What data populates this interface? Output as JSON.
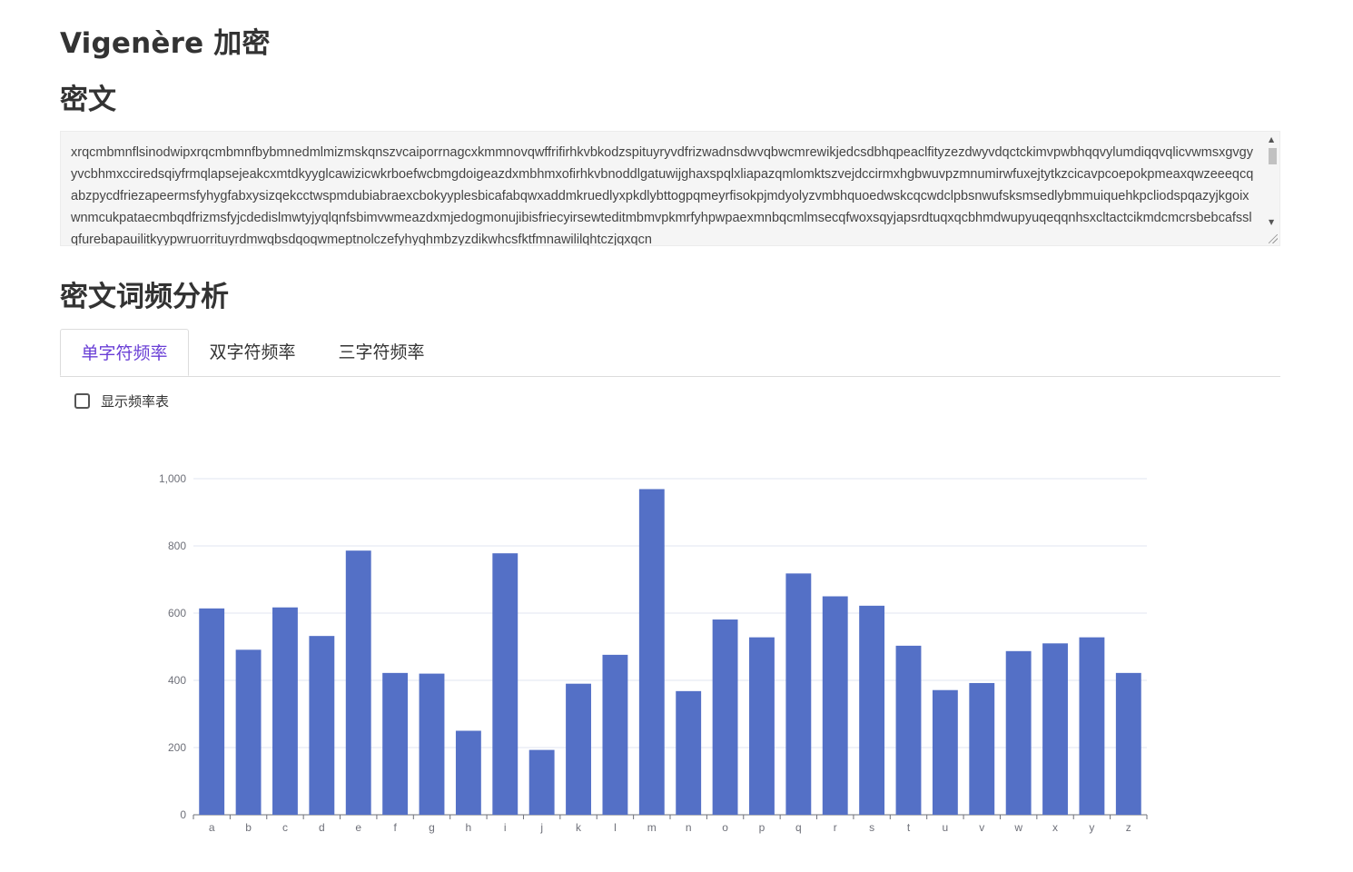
{
  "page": {
    "title": "Vigenère 加密",
    "ciphertext_heading": "密文",
    "analysis_heading": "密文词频分析"
  },
  "ciphertext": {
    "value": "xrqcmbmnflsinodwipxrqcmbmnfbybmnedmlmizmskqnszvcaiporrnagcxkmmnovqwffrifirhkvbkodzspituyryvdfrizwadnsdwvqbwcmrewikjedcsdbhqpeaclfityzezdwyvdqctckimvpwbhqqvylumdiqqvqlicvwmsxgvgyyvcbhmxcciredsqiyfrmqlapsejeakcxmtdkyyglcawizicwkrboefwcbmgdoigeazdxmbhmxofirhkvbnoddlgatuwijghaxspqlxliapazqmlomktszvejdccirmxhgbwuvpzmnumirwfuxejtytkzcicavpcoepokpmeaxqwzeeeqcqabzpycdfriezapeermsfyhygfabxysizqekcctwspmdubiabraexcbokyyplesbicafabqwxaddmkruedlyxpkdlybttogpqmeyrfisokpjmdyolyzvmbhquoedwskcqcwdclpbsnwufsksmsedlybmmuiquehkpcliodspqazyjkgoixwnmcukpataecmbqdfrizmsfyjcdedislmwtyjyqlqnfsbimvwmeazdxmjedogmonujibisfriecyirsewteditmbmvpkmrfyhpwpaexmnbqcmlmsecqfwoxsqyjapsrdtuqxqcbhmdwupyuqeqqnhsxcltactcikmdcmcrsbebcafsslqfurebapauilitkyypwruorrituyrdmwqbsdqoqwmeptnolczefyhyqhmbzyzdikwhcsfktfmnawililqhtczjqxqcn"
  },
  "tabs": [
    {
      "label": "单字符频率",
      "active": true
    },
    {
      "label": "双字符频率",
      "active": false
    },
    {
      "label": "三字符频率",
      "active": false
    }
  ],
  "options": {
    "show_table_label": "显示频率表",
    "show_table_checked": false
  },
  "colors": {
    "bar": "#5470c6",
    "active_tab": "#6a3fd6",
    "axis_text": "#6e7079"
  },
  "icons": {
    "scroll_up": "triangle-up-icon",
    "scroll_down": "triangle-down-icon",
    "resize": "resize-grip-icon"
  },
  "chart_data": {
    "type": "bar",
    "categories": [
      "a",
      "b",
      "c",
      "d",
      "e",
      "f",
      "g",
      "h",
      "i",
      "j",
      "k",
      "l",
      "m",
      "n",
      "o",
      "p",
      "q",
      "r",
      "s",
      "t",
      "u",
      "v",
      "w",
      "x",
      "y",
      "z"
    ],
    "values": [
      614,
      491,
      617,
      532,
      786,
      422,
      420,
      250,
      778,
      193,
      390,
      476,
      969,
      368,
      581,
      528,
      718,
      650,
      622,
      503,
      371,
      392,
      487,
      510,
      528,
      422
    ],
    "ylim": [
      0,
      1000
    ],
    "yticks": [
      "0",
      "200",
      "400",
      "600",
      "800",
      "1,000"
    ],
    "grid": true
  }
}
